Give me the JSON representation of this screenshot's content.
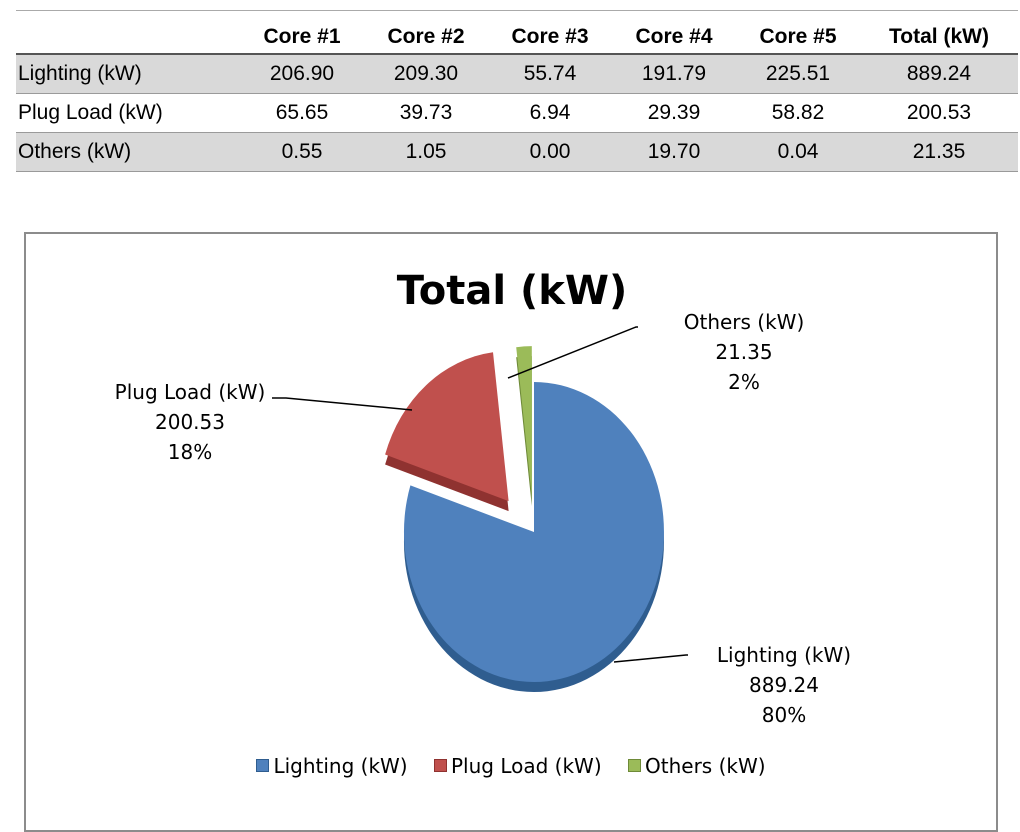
{
  "table": {
    "corner": "",
    "headers": [
      "Core #1",
      "Core #2",
      "Core #3",
      "Core #4",
      "Core #5",
      "Total (kW)"
    ],
    "rows": [
      {
        "label": "Lighting (kW)",
        "cells": [
          "206.90",
          "209.30",
          "55.74",
          "191.79",
          "225.51",
          "889.24"
        ]
      },
      {
        "label": "Plug Load (kW)",
        "cells": [
          "65.65",
          "39.73",
          "6.94",
          "29.39",
          "58.82",
          "200.53"
        ]
      },
      {
        "label": "Others (kW)",
        "cells": [
          "0.55",
          "1.05",
          "0.00",
          "19.70",
          "0.04",
          "21.35"
        ]
      }
    ]
  },
  "chart_data": {
    "type": "pie",
    "title": "Total (kW)",
    "slices": [
      {
        "label": "Lighting (kW)",
        "value": 889.24,
        "value_label": "889.24",
        "percent_label": "80%",
        "color": "#4f81bd",
        "side_color": "#2f5d8f"
      },
      {
        "label": "Plug Load (kW)",
        "value": 200.53,
        "value_label": "200.53",
        "percent_label": "18%",
        "color": "#c0504d",
        "side_color": "#8f3230"
      },
      {
        "label": "Others (kW)",
        "value": 21.35,
        "value_label": "21.35",
        "percent_label": "2%",
        "color": "#9bbb59",
        "side_color": "#6e8a38"
      }
    ],
    "exploded": true,
    "style": "3d",
    "legend_position": "bottom",
    "data_labels": "category, value, percent"
  }
}
